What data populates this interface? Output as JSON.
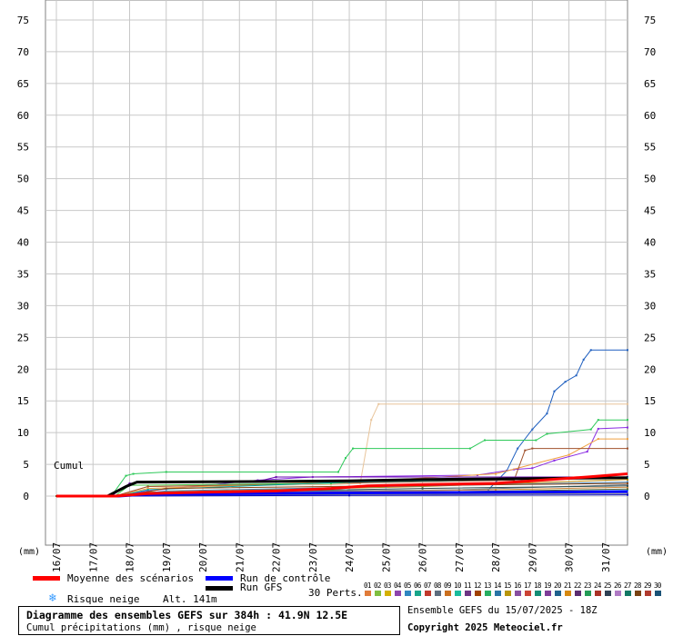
{
  "chart_data": {
    "type": "line",
    "y_ticks": [
      0,
      5,
      10,
      15,
      20,
      25,
      30,
      35,
      40,
      45,
      50,
      55,
      60,
      65,
      70,
      75
    ],
    "x_ticks": [
      "16/07",
      "17/07",
      "18/07",
      "19/07",
      "20/07",
      "21/07",
      "22/07",
      "23/07",
      "24/07",
      "25/07",
      "26/07",
      "27/07",
      "28/07",
      "29/07",
      "30/07",
      "31/07"
    ],
    "ylim": [
      0,
      75
    ],
    "xlim": [
      16.0,
      31.6
    ],
    "y_unit_left": "(mm)",
    "y_unit_right": "(mm)",
    "cumul_label": "Cumul",
    "grid": true,
    "series": [
      {
        "color": "#1f5fbf",
        "x": [
          16.0,
          17.5,
          17.9,
          18.5,
          27.8,
          28.3,
          28.6,
          29.0,
          29.4,
          29.6,
          29.9,
          30.2,
          30.4,
          30.6,
          31.6
        ],
        "y": [
          0,
          0,
          0.3,
          0.6,
          1.0,
          4.0,
          7.5,
          10.5,
          13.0,
          16.5,
          18.0,
          19.0,
          21.5,
          23.0,
          23.0
        ]
      },
      {
        "color": "#e8c49a",
        "x": [
          16.0,
          17.6,
          18.5,
          23.5,
          24.3,
          24.6,
          24.8,
          31.6
        ],
        "y": [
          0,
          0,
          1.5,
          1.8,
          2.0,
          12.0,
          14.5,
          14.5
        ]
      },
      {
        "color": "#2ec95a",
        "x": [
          16.0,
          17.5,
          17.9,
          18.1,
          19.0,
          23.7,
          23.9,
          24.1,
          27.3,
          27.7,
          29.1,
          29.4,
          30.6,
          30.8,
          31.6
        ],
        "y": [
          0,
          0,
          3.2,
          3.5,
          3.8,
          3.8,
          6.0,
          7.5,
          7.5,
          8.8,
          8.8,
          9.8,
          10.5,
          12.0,
          12.0
        ]
      },
      {
        "color": "#8a2be2",
        "x": [
          16.0,
          17.6,
          18.5,
          21.5,
          23.0,
          27.5,
          28.5,
          29.0,
          29.6,
          30.5,
          30.8,
          31.6
        ],
        "y": [
          0,
          0,
          0.8,
          2.5,
          3.0,
          3.3,
          4.2,
          4.4,
          5.6,
          7.0,
          10.6,
          10.8
        ]
      },
      {
        "color": "#f0a040",
        "x": [
          16.0,
          17.6,
          18.5,
          25.0,
          28.0,
          30.0,
          30.8,
          31.6
        ],
        "y": [
          0,
          0,
          1.2,
          2.5,
          3.5,
          6.5,
          9.0,
          9.0
        ]
      },
      {
        "color": "#a0522d",
        "x": [
          16.0,
          17.6,
          18.5,
          28.5,
          28.8,
          29.0,
          31.6
        ],
        "y": [
          0,
          0,
          1.5,
          2.5,
          7.2,
          7.5,
          7.5
        ]
      },
      {
        "color": "#6a0dad",
        "x": [
          16.0,
          17.5,
          18.0,
          18.5,
          21.5,
          22.0,
          31.6
        ],
        "y": [
          0,
          0,
          2.0,
          2.2,
          2.3,
          3.0,
          3.0
        ]
      },
      {
        "color": "#40c040",
        "x": [
          16.0,
          17.6,
          18.0,
          23.5,
          24.5,
          31.6
        ],
        "y": [
          0,
          0,
          1.7,
          2.0,
          2.4,
          2.8
        ]
      },
      {
        "color": "#00a0a0",
        "x": [
          16.0,
          17.7,
          18.5,
          24.0,
          31.6
        ],
        "y": [
          0,
          0,
          1.0,
          2.2,
          2.9
        ]
      },
      {
        "color": "#b8860b",
        "x": [
          16.0,
          17.7,
          18.5,
          26.0,
          31.6
        ],
        "y": [
          0,
          0,
          0.6,
          1.5,
          2.6
        ]
      },
      {
        "color": "#4682b4",
        "x": [
          16.0,
          17.7,
          19.0,
          25.0,
          31.6
        ],
        "y": [
          0,
          0,
          0.8,
          1.5,
          2.2
        ]
      },
      {
        "color": "#708090",
        "x": [
          16.0,
          17.7,
          19.0,
          27.0,
          31.6
        ],
        "y": [
          0,
          0,
          0.5,
          1.0,
          1.8
        ]
      },
      {
        "color": "#cd853f",
        "x": [
          16.0,
          17.8,
          20.0,
          28.0,
          31.6
        ],
        "y": [
          0,
          0,
          0.4,
          1.0,
          1.4
        ]
      },
      {
        "color": "#2f4f4f",
        "x": [
          16.0,
          17.8,
          20.0,
          26.0,
          31.6
        ],
        "y": [
          0,
          0,
          0.6,
          1.2,
          1.6
        ]
      },
      {
        "color": "#1e90ff",
        "x": [
          16.0,
          17.8,
          20.0,
          28.0,
          31.6
        ],
        "y": [
          0,
          0,
          0.2,
          0.6,
          0.9
        ]
      },
      {
        "color": "#556b2f",
        "x": [
          16.0,
          17.8,
          19.0,
          27.0,
          31.6
        ],
        "y": [
          0,
          0,
          0.3,
          0.7,
          1.1
        ]
      },
      {
        "color": "#9370db",
        "x": [
          16.0,
          17.8,
          21.0,
          28.0,
          31.6
        ],
        "y": [
          0,
          0,
          0.2,
          0.4,
          0.6
        ]
      },
      {
        "color": "#808080",
        "x": [
          16.0,
          17.8,
          22.0,
          31.6
        ],
        "y": [
          0,
          0,
          0.2,
          0.4
        ]
      },
      {
        "color": "#0000cd",
        "x": [
          16.0,
          17.8,
          24.0,
          31.6
        ],
        "y": [
          0,
          0,
          0.1,
          0.2
        ]
      },
      {
        "color": "#8b4513",
        "x": [
          16.0,
          17.8,
          19.0,
          25.0,
          31.6
        ],
        "y": [
          0,
          0,
          1.2,
          1.6,
          2.0
        ]
      },
      {
        "color": "#000000",
        "name": "Run GFS",
        "bold": true,
        "x": [
          16.0,
          17.4,
          17.9,
          18.2,
          22.0,
          24.0,
          26.0,
          28.0,
          31.6
        ],
        "y": [
          0,
          0,
          1.5,
          2.2,
          2.3,
          2.4,
          2.6,
          2.7,
          2.9
        ]
      },
      {
        "color": "#0000ff",
        "name": "Run de contrôle",
        "bold": true,
        "x": [
          16.0,
          17.7,
          18.5,
          24.0,
          28.0,
          31.6
        ],
        "y": [
          0,
          0,
          0.3,
          0.5,
          0.6,
          0.7
        ]
      },
      {
        "color": "#ff0000",
        "name": "Moyenne des scénarios",
        "bold": true,
        "x": [
          16.0,
          17.6,
          18.5,
          20.0,
          22.0,
          23.5,
          24.5,
          26.0,
          28.0,
          29.5,
          30.5,
          31.6
        ],
        "y": [
          0,
          0,
          0.4,
          0.6,
          0.8,
          1.2,
          1.6,
          1.8,
          2.0,
          2.6,
          3.0,
          3.5
        ]
      }
    ]
  },
  "legend": {
    "mean_label": "Moyenne des scénarios",
    "mean_color": "#ff0000",
    "control_label": "Run de contrôle",
    "control_color": "#0000ff",
    "gfs_label": "Run GFS",
    "gfs_color": "#000000",
    "snow_icon": "snowflake-icon",
    "snow_label": "Risque neige",
    "alt_label": "Alt. 141m",
    "perts_label": "30 Perts.",
    "pert_numbers": [
      "01",
      "02",
      "03",
      "04",
      "05",
      "06",
      "07",
      "08",
      "09",
      "10",
      "11",
      "12",
      "13",
      "14",
      "15",
      "16",
      "17",
      "18",
      "19",
      "20",
      "21",
      "22",
      "23",
      "24",
      "25",
      "26",
      "27",
      "28",
      "29",
      "30"
    ],
    "pert_colors": [
      "#e07b39",
      "#7fbf3f",
      "#d4b000",
      "#8e44ad",
      "#2e86c1",
      "#17a589",
      "#c0392b",
      "#5d6d7e",
      "#ca6f1e",
      "#1abc9c",
      "#6c3483",
      "#a04000",
      "#27ae60",
      "#2874a6",
      "#b7950b",
      "#884ea0",
      "#cb4335",
      "#138d75",
      "#7d3c98",
      "#1f618d",
      "#d68910",
      "#5b2c6f",
      "#239b56",
      "#a93226",
      "#2e4053",
      "#af7ac5",
      "#117864",
      "#784212",
      "#b03a2e",
      "#1a5276"
    ]
  },
  "info": {
    "title": "Diagramme des ensembles GEFS sur 384h : 41.9N 12.5E",
    "subtitle": "Cumul précipitations (mm) , risque neige",
    "ensemble_label": "Ensemble GEFS du 15/07/2025 - 18Z",
    "copyright": "Copyright 2025 Meteociel.fr"
  }
}
